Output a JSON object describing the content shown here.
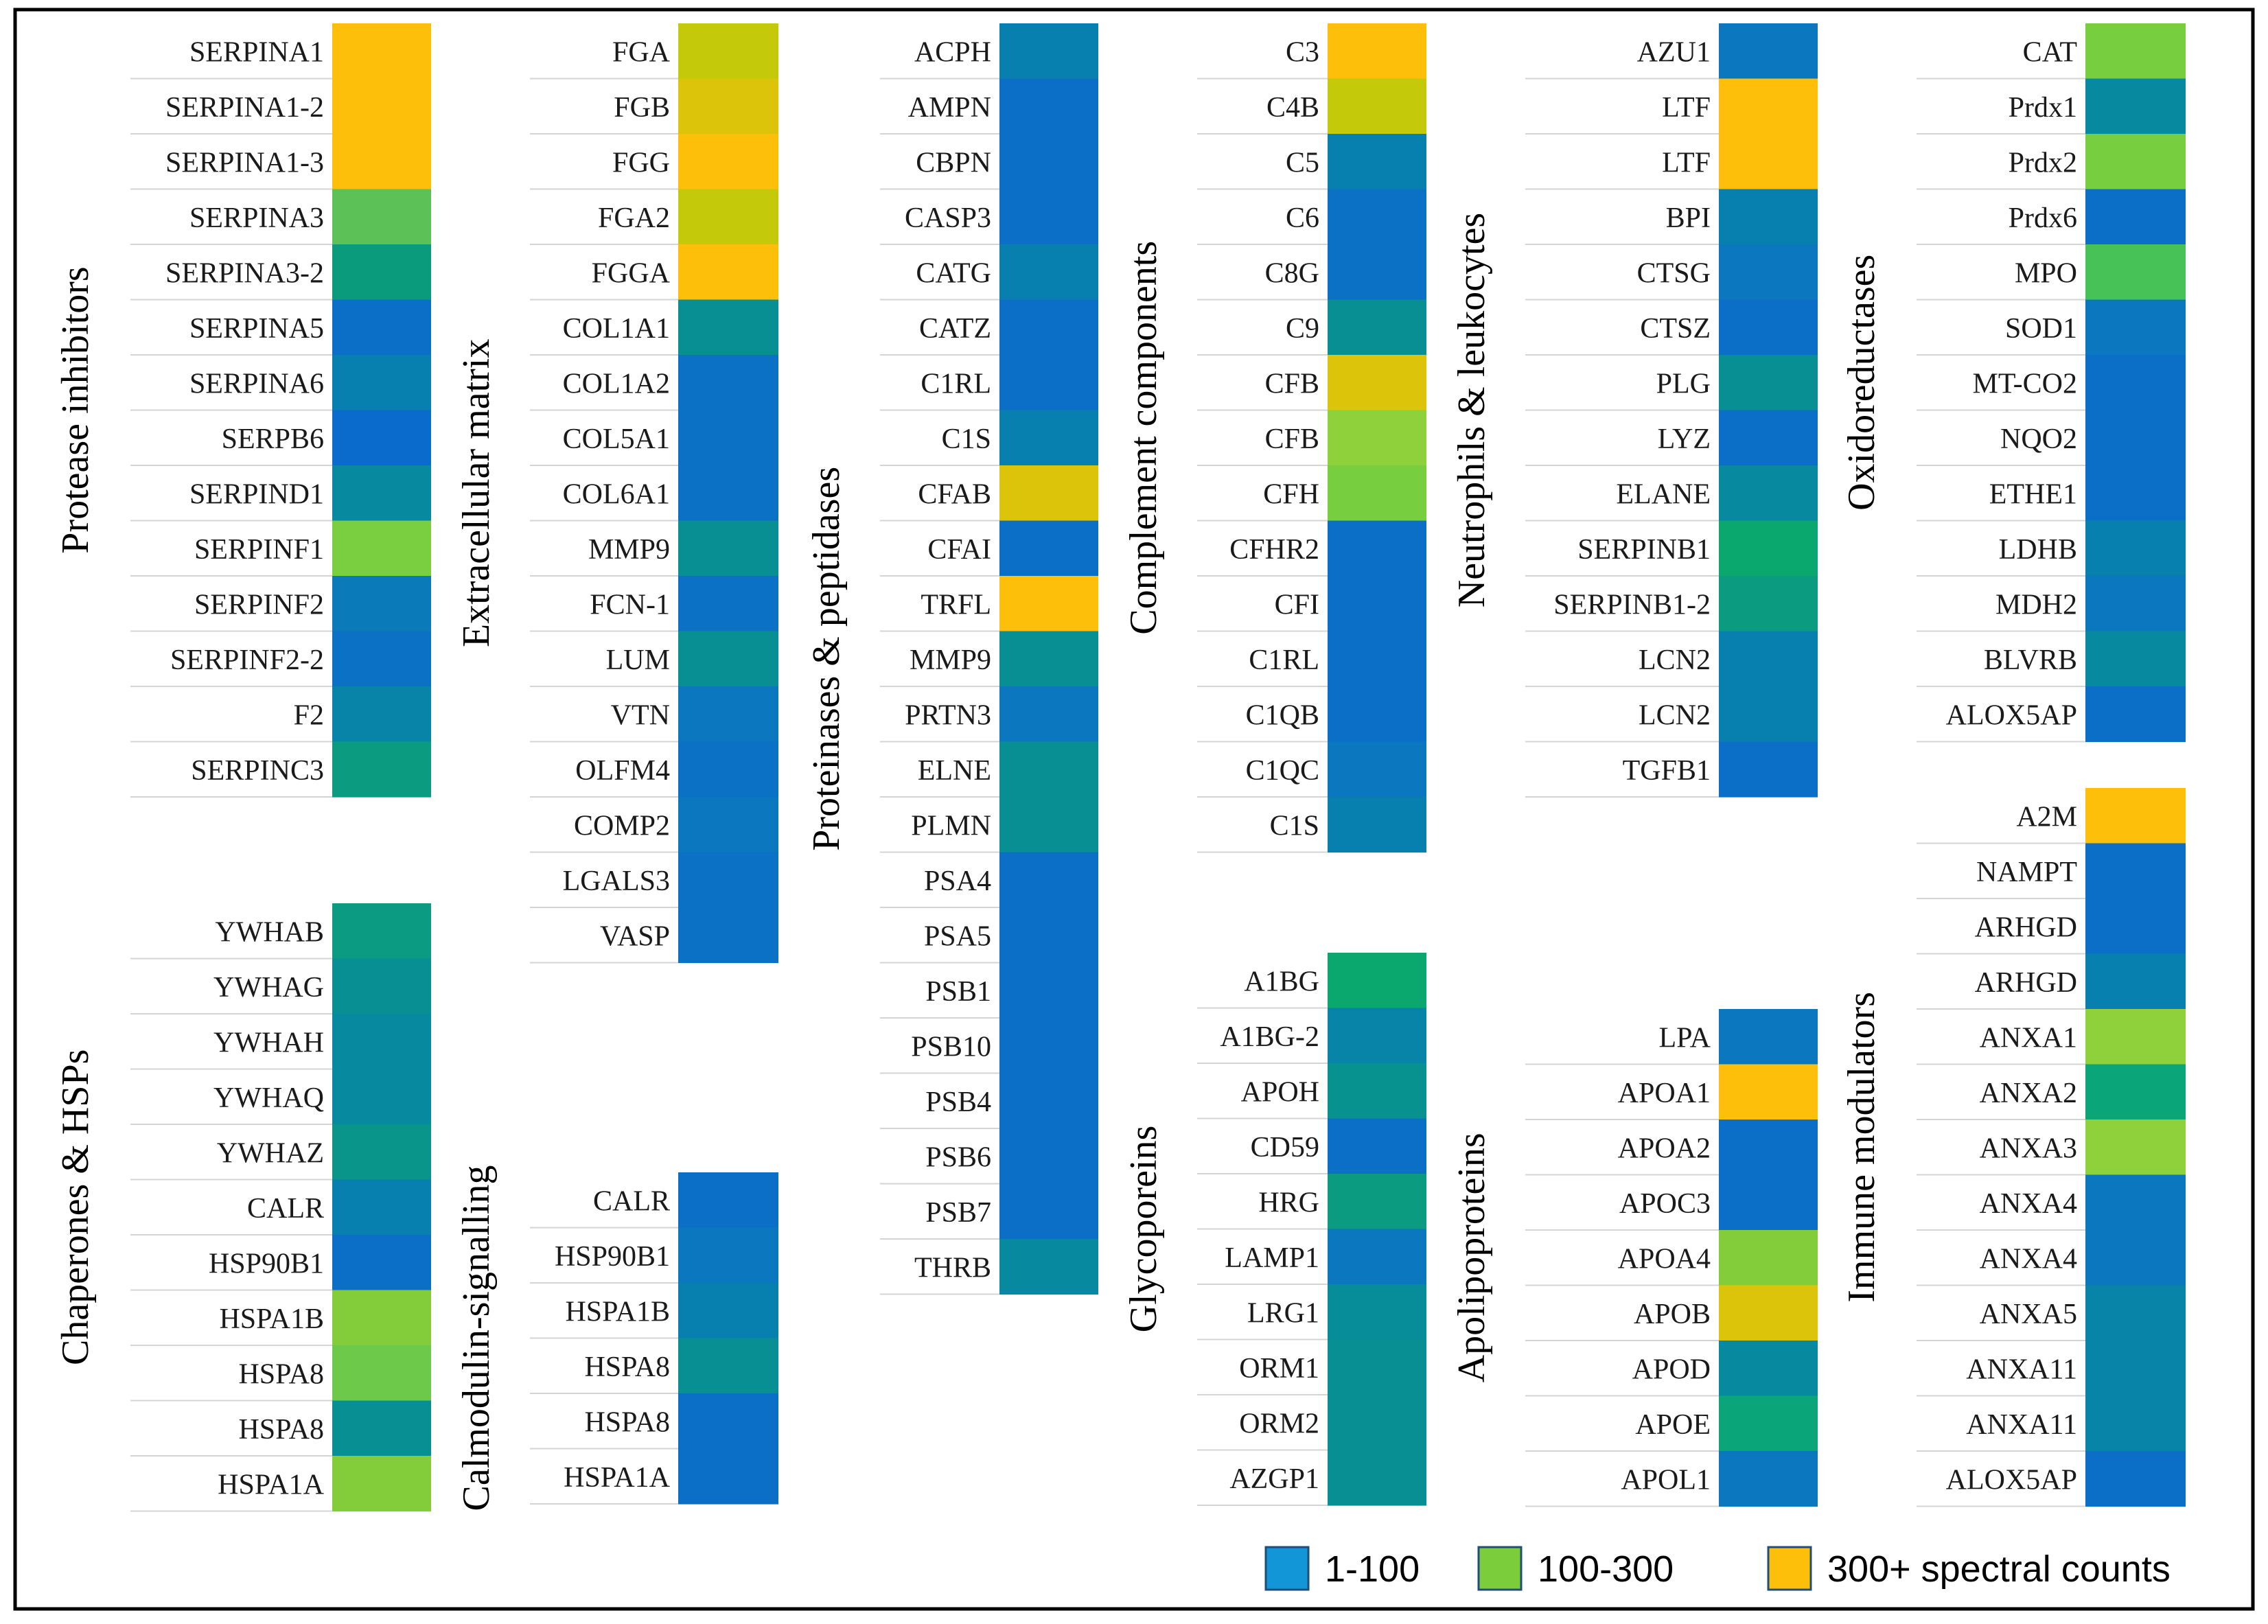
{
  "chart_data": {
    "type": "heatmap",
    "value_encoding": "spectral count category",
    "color_scale": {
      "1-100": [
        "#0a6fc8",
        "#0b77bf",
        "#0780b0",
        "#078c9a",
        "#0a9585"
      ],
      "100-300": [
        "#0aa374",
        "#2cb45c",
        "#47c24e",
        "#77cf3f",
        "#8fd13a"
      ],
      "300+": [
        "#c4c90a",
        "#dcc40a",
        "#fdbf0a"
      ]
    },
    "legend": [
      {
        "label": "1-100",
        "color": "#1296d8"
      },
      {
        "label": "100-300",
        "color": "#7ccd3c"
      },
      {
        "label": "300+ spectral counts",
        "color": "#fdbf0a"
      }
    ],
    "groups": [
      {
        "title": "Protease inhibitors",
        "rows": [
          {
            "label": "SERPINA1",
            "color": "#fdbf0a"
          },
          {
            "label": "SERPINA1-2",
            "color": "#fdbf0a"
          },
          {
            "label": "SERPINA1-3",
            "color": "#fdbf0a"
          },
          {
            "label": "SERPINA3",
            "color": "#5cc257"
          },
          {
            "label": "SERPINA3-2",
            "color": "#0a9b7d"
          },
          {
            "label": "SERPINA5",
            "color": "#0b6fc8"
          },
          {
            "label": "SERPINA6",
            "color": "#0780b0"
          },
          {
            "label": "SERPB6",
            "color": "#0a6bcc"
          },
          {
            "label": "SERPIND1",
            "color": "#078a9f"
          },
          {
            "label": "SERPINF1",
            "color": "#7acf40"
          },
          {
            "label": "SERPINF2",
            "color": "#0b7ab9"
          },
          {
            "label": "SERPINF2-2",
            "color": "#0b71c4"
          },
          {
            "label": "F2",
            "color": "#0784a8"
          },
          {
            "label": "SERPINC3",
            "color": "#0a9b80"
          }
        ]
      },
      {
        "title": "Chaperones & HSPs",
        "rows": [
          {
            "label": "YWHAB",
            "color": "#0a9b82"
          },
          {
            "label": "YWHAG",
            "color": "#088f94"
          },
          {
            "label": "YWHAH",
            "color": "#078a9f"
          },
          {
            "label": "YWHAQ",
            "color": "#078a9f"
          },
          {
            "label": "YWHAZ",
            "color": "#0a958a"
          },
          {
            "label": "CALR",
            "color": "#0780b0"
          },
          {
            "label": "HSP90B1",
            "color": "#0b6fc8"
          },
          {
            "label": "HSPA1B",
            "color": "#84cd3a"
          },
          {
            "label": "HSPA8",
            "color": "#6dc94a"
          },
          {
            "label": "HSPA8",
            "color": "#088f94"
          },
          {
            "label": "HSPA1A",
            "color": "#84cd3a"
          }
        ]
      },
      {
        "title": "Extracellular matrix",
        "rows": [
          {
            "label": "FGA",
            "color": "#c4c90a"
          },
          {
            "label": "FGB",
            "color": "#dcc40a"
          },
          {
            "label": "FGG",
            "color": "#fdbf0a"
          },
          {
            "label": "FGA2",
            "color": "#c4c90a"
          },
          {
            "label": "FGGA",
            "color": "#fdbf0a"
          },
          {
            "label": "COL1A1",
            "color": "#088f94"
          },
          {
            "label": "COL1A2",
            "color": "#0b71c4"
          },
          {
            "label": "COL5A1",
            "color": "#0b71c4"
          },
          {
            "label": "COL6A1",
            "color": "#0b71c4"
          },
          {
            "label": "MMP9",
            "color": "#088f94"
          },
          {
            "label": "FCN-1",
            "color": "#0b71c4"
          },
          {
            "label": "LUM",
            "color": "#088f94"
          },
          {
            "label": "VTN",
            "color": "#0b77bf"
          },
          {
            "label": "OLFM4",
            "color": "#0b71c4"
          },
          {
            "label": "COMP2",
            "color": "#0b77bf"
          },
          {
            "label": "LGALS3",
            "color": "#0b71c4"
          },
          {
            "label": "VASP",
            "color": "#0b71c4"
          }
        ]
      },
      {
        "title": "Calmodulin-signalling",
        "rows": [
          {
            "label": "CALR",
            "color": "#0b6fc8"
          },
          {
            "label": "HSP90B1",
            "color": "#0b77bf"
          },
          {
            "label": "HSPA1B",
            "color": "#0780b0"
          },
          {
            "label": "HSPA8",
            "color": "#088f94"
          },
          {
            "label": "HSPA8",
            "color": "#0b6fc8"
          },
          {
            "label": "HSPA1A",
            "color": "#0b6fc8"
          }
        ]
      },
      {
        "title": "Proteinases & peptidases",
        "rows": [
          {
            "label": "ACPH",
            "color": "#0780b0"
          },
          {
            "label": "AMPN",
            "color": "#0b6fc8"
          },
          {
            "label": "CBPN",
            "color": "#0b6fc8"
          },
          {
            "label": "CASP3",
            "color": "#0b6fc8"
          },
          {
            "label": "CATG",
            "color": "#0780b0"
          },
          {
            "label": "CATZ",
            "color": "#0b6fc8"
          },
          {
            "label": "C1RL",
            "color": "#0b6fc8"
          },
          {
            "label": "C1S",
            "color": "#0780b0"
          },
          {
            "label": "CFAB",
            "color": "#dcc40a"
          },
          {
            "label": "CFAI",
            "color": "#0b6fc8"
          },
          {
            "label": "TRFL",
            "color": "#fdbf0a"
          },
          {
            "label": "MMP9",
            "color": "#088f94"
          },
          {
            "label": "PRTN3",
            "color": "#0b77bf"
          },
          {
            "label": "ELNE",
            "color": "#088f94"
          },
          {
            "label": "PLMN",
            "color": "#088f94"
          },
          {
            "label": "PSA4",
            "color": "#0b6fc8"
          },
          {
            "label": "PSA5",
            "color": "#0b6fc8"
          },
          {
            "label": "PSB1",
            "color": "#0b6fc8"
          },
          {
            "label": "PSB10",
            "color": "#0b6fc8"
          },
          {
            "label": "PSB4",
            "color": "#0b6fc8"
          },
          {
            "label": "PSB6",
            "color": "#0b6fc8"
          },
          {
            "label": "PSB7",
            "color": "#0b6fc8"
          },
          {
            "label": "THRB",
            "color": "#078a9f"
          }
        ]
      },
      {
        "title": "Complement components",
        "rows": [
          {
            "label": "C3",
            "color": "#fdbf0a"
          },
          {
            "label": "C4B",
            "color": "#c4c90a"
          },
          {
            "label": "C5",
            "color": "#0780b0"
          },
          {
            "label": "C6",
            "color": "#0b71c4"
          },
          {
            "label": "C8G",
            "color": "#0b71c4"
          },
          {
            "label": "C9",
            "color": "#088f94"
          },
          {
            "label": "CFB",
            "color": "#dcc40a"
          },
          {
            "label": "CFB",
            "color": "#8fd13a"
          },
          {
            "label": "CFH",
            "color": "#77cf3f"
          },
          {
            "label": "CFHR2",
            "color": "#0b6fc8"
          },
          {
            "label": "CFI",
            "color": "#0b6fc8"
          },
          {
            "label": "C1RL",
            "color": "#0b6fc8"
          },
          {
            "label": "C1QB",
            "color": "#0b6fc8"
          },
          {
            "label": "C1QC",
            "color": "#0b77bf"
          },
          {
            "label": "C1S",
            "color": "#0780b0"
          }
        ]
      },
      {
        "title": "Glycoporeins",
        "rows": [
          {
            "label": "A1BG",
            "color": "#0aa86f"
          },
          {
            "label": "A1BG-2",
            "color": "#0784a8"
          },
          {
            "label": "APOH",
            "color": "#08928f"
          },
          {
            "label": "CD59",
            "color": "#0b6fc8"
          },
          {
            "label": "HRG",
            "color": "#0a9b80"
          },
          {
            "label": "LAMP1",
            "color": "#0b77bf"
          },
          {
            "label": "LRG1",
            "color": "#078c9a"
          },
          {
            "label": "ORM1",
            "color": "#088f94"
          },
          {
            "label": "ORM2",
            "color": "#088f94"
          },
          {
            "label": "AZGP1",
            "color": "#088f94"
          }
        ]
      },
      {
        "title": "Neutrophils & leukocytes",
        "rows": [
          {
            "label": "AZU1",
            "color": "#0b77bf"
          },
          {
            "label": "LTF",
            "color": "#fdbf0a"
          },
          {
            "label": "LTF",
            "color": "#fdbf0a"
          },
          {
            "label": "BPI",
            "color": "#0780b0"
          },
          {
            "label": "CTSG",
            "color": "#0b77bf"
          },
          {
            "label": "CTSZ",
            "color": "#0b6fc8"
          },
          {
            "label": "PLG",
            "color": "#088f94"
          },
          {
            "label": "LYZ",
            "color": "#0b6fc8"
          },
          {
            "label": "ELANE",
            "color": "#078a9f"
          },
          {
            "label": "SERPINB1",
            "color": "#0aa86f"
          },
          {
            "label": "SERPINB1-2",
            "color": "#0a9b80"
          },
          {
            "label": "LCN2",
            "color": "#0780b0"
          },
          {
            "label": "LCN2",
            "color": "#0780b0"
          },
          {
            "label": "TGFB1",
            "color": "#0b6fc8"
          }
        ]
      },
      {
        "title": "Apolipoproteins",
        "rows": [
          {
            "label": "LPA",
            "color": "#0b77bf"
          },
          {
            "label": "APOA1",
            "color": "#fdbf0a"
          },
          {
            "label": "APOA2",
            "color": "#0b6fc8"
          },
          {
            "label": "APOC3",
            "color": "#0b6fc8"
          },
          {
            "label": "APOA4",
            "color": "#84cd3a"
          },
          {
            "label": "APOB",
            "color": "#dcc40a"
          },
          {
            "label": "APOD",
            "color": "#078a9f"
          },
          {
            "label": "APOE",
            "color": "#0aa578"
          },
          {
            "label": "APOL1",
            "color": "#0b77bf"
          }
        ]
      },
      {
        "title": "Oxidoreductases",
        "rows": [
          {
            "label": "CAT",
            "color": "#77cf3f"
          },
          {
            "label": "Prdx1",
            "color": "#078a9f"
          },
          {
            "label": "Prdx2",
            "color": "#77cf3f"
          },
          {
            "label": "Prdx6",
            "color": "#0b6fc8"
          },
          {
            "label": "MPO",
            "color": "#47c257"
          },
          {
            "label": "SOD1",
            "color": "#0b77bf"
          },
          {
            "label": "MT-CO2",
            "color": "#0b6fc8"
          },
          {
            "label": "NQO2",
            "color": "#0b6fc8"
          },
          {
            "label": "ETHE1",
            "color": "#0b6fc8"
          },
          {
            "label": "LDHB",
            "color": "#0780b0"
          },
          {
            "label": "MDH2",
            "color": "#0b77bf"
          },
          {
            "label": "BLVRB",
            "color": "#078a9f"
          },
          {
            "label": "ALOX5AP",
            "color": "#0b6fc8"
          }
        ]
      },
      {
        "title": "Immune modulators",
        "rows": [
          {
            "label": "A2M",
            "color": "#fdbf0a"
          },
          {
            "label": "NAMPT",
            "color": "#0b6fc8"
          },
          {
            "label": "ARHGD",
            "color": "#0b6fc8"
          },
          {
            "label": "ARHGD",
            "color": "#0780b0"
          },
          {
            "label": "ANXA1",
            "color": "#8fd13a"
          },
          {
            "label": "ANXA2",
            "color": "#0aa578"
          },
          {
            "label": "ANXA3",
            "color": "#8fd13a"
          },
          {
            "label": "ANXA4",
            "color": "#0b77bf"
          },
          {
            "label": "ANXA4",
            "color": "#0b77bf"
          },
          {
            "label": "ANXA5",
            "color": "#0784a8"
          },
          {
            "label": "ANXA11",
            "color": "#0784a8"
          },
          {
            "label": "ANXA11",
            "color": "#0784a8"
          },
          {
            "label": "ALOX5AP",
            "color": "#0b6fc8"
          }
        ]
      }
    ]
  }
}
